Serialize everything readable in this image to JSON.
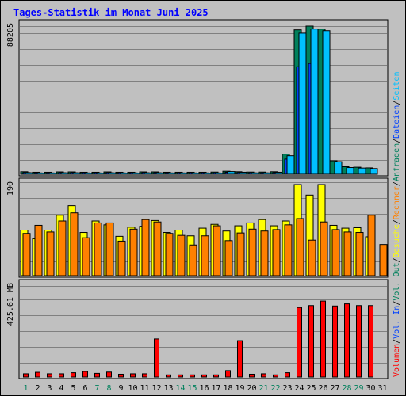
{
  "chart_data": {
    "type": "bar",
    "title": "Tages-Statistik im Monat Juni 2025",
    "colors": {
      "title": "#0000ff",
      "background": "#c0c0c0",
      "anfragen": "#00805c",
      "dateien": "#0040ff",
      "seiten": "#00c0ff",
      "besuche": "#ffff00",
      "rechner": "#ff8000",
      "volumen": "#ff0000",
      "weekday": "#000000",
      "weekend": "#00805c",
      "vol_in": "#0040ff",
      "vol_out": "#00805c",
      "slash": "#000000"
    },
    "days": [
      "1",
      "2",
      "3",
      "4",
      "5",
      "6",
      "7",
      "8",
      "9",
      "10",
      "11",
      "12",
      "13",
      "14",
      "15",
      "16",
      "17",
      "18",
      "19",
      "20",
      "21",
      "22",
      "23",
      "24",
      "25",
      "26",
      "27",
      "28",
      "29",
      "30",
      "31"
    ],
    "weekend_days": [
      "1",
      "7",
      "8",
      "14",
      "15",
      "21",
      "22",
      "28",
      "29"
    ],
    "panels": [
      {
        "id": "hits",
        "ymax_label": "88205",
        "ymax": 88205,
        "series": [
          {
            "name": "Anfragen",
            "color": "#00805c",
            "values": [
              1500,
              1200,
              1200,
              1400,
              1400,
              1200,
              1200,
              1400,
              1200,
              1200,
              1400,
              1400,
              1200,
              1200,
              1200,
              1200,
              1300,
              1800,
              1500,
              1300,
              1300,
              1500,
              12000,
              86000,
              88205,
              86500,
              8000,
              4500,
              4200,
              3800,
              0
            ]
          },
          {
            "name": "Dateien",
            "color": "#0040ff",
            "values": [
              1000,
              800,
              800,
              900,
              900,
              800,
              800,
              900,
              800,
              800,
              900,
              900,
              800,
              800,
              800,
              800,
              800,
              1200,
              1000,
              800,
              800,
              1000,
              9000,
              64000,
              66000,
              0,
              0,
              0,
              0,
              0,
              0
            ]
          },
          {
            "name": "Seiten",
            "color": "#00c0ff",
            "values": [
              900,
              700,
              700,
              800,
              800,
              700,
              700,
              800,
              700,
              700,
              800,
              800,
              700,
              700,
              700,
              700,
              700,
              1600,
              1200,
              800,
              800,
              1200,
              11000,
              84000,
              86500,
              85500,
              7500,
              4000,
              3700,
              3400,
              0
            ]
          }
        ],
        "side_labels": [
          {
            "text": "Seiten",
            "color": "#00c0ff"
          },
          {
            "text": "Dateien",
            "color": "#0040ff"
          },
          {
            "text": "Anfragen",
            "color": "#00805c"
          }
        ]
      },
      {
        "id": "visits",
        "ymax_label": "190",
        "ymax": 190,
        "series": [
          {
            "name": "Besuche",
            "color": "#ffff00",
            "values": [
              95,
              77,
              95,
              126,
              146,
              90,
              114,
              106,
              82,
              101,
              103,
              115,
              90,
              95,
              83,
              99,
              107,
              93,
              104,
              110,
              117,
              104,
              114,
              190,
              168,
              190,
              105,
              99,
              100,
              81,
              0
            ]
          },
          {
            "name": "Rechner",
            "color": "#ff8000",
            "values": [
              88,
              105,
              91,
              114,
              131,
              79,
              110,
              110,
              72,
              97,
              117,
              112,
              88,
              84,
              64,
              83,
              104,
              73,
              89,
              97,
              93,
              96,
              106,
              119,
              74,
              112,
              96,
              91,
              90,
              126,
              65
            ]
          }
        ],
        "side_labels": [
          {
            "text": "Rechner",
            "color": "#ff8000"
          },
          {
            "text": "Besuche",
            "color": "#ffff00"
          }
        ]
      },
      {
        "id": "volume",
        "ymax_label": "425.61 MB",
        "ymax": 425.61,
        "series": [
          {
            "name": "Volumen",
            "color": "#ff0000",
            "values": [
              15,
              22,
              15,
              15,
              20,
              26,
              17,
              23,
              13,
              15,
              15,
              178,
              10,
              10,
              10,
              10,
              10,
              30,
              170,
              13,
              15,
              10,
              20,
              325,
              334,
              355,
              332,
              342,
              334,
              334,
              0
            ]
          }
        ],
        "side_labels": [
          {
            "text": "Vol. Out",
            "color": "#00805c"
          },
          {
            "text": "Vol. In",
            "color": "#0040ff"
          },
          {
            "text": "Volumen",
            "color": "#ff0000"
          }
        ]
      }
    ],
    "grid": true,
    "legend": "right-vertical"
  }
}
